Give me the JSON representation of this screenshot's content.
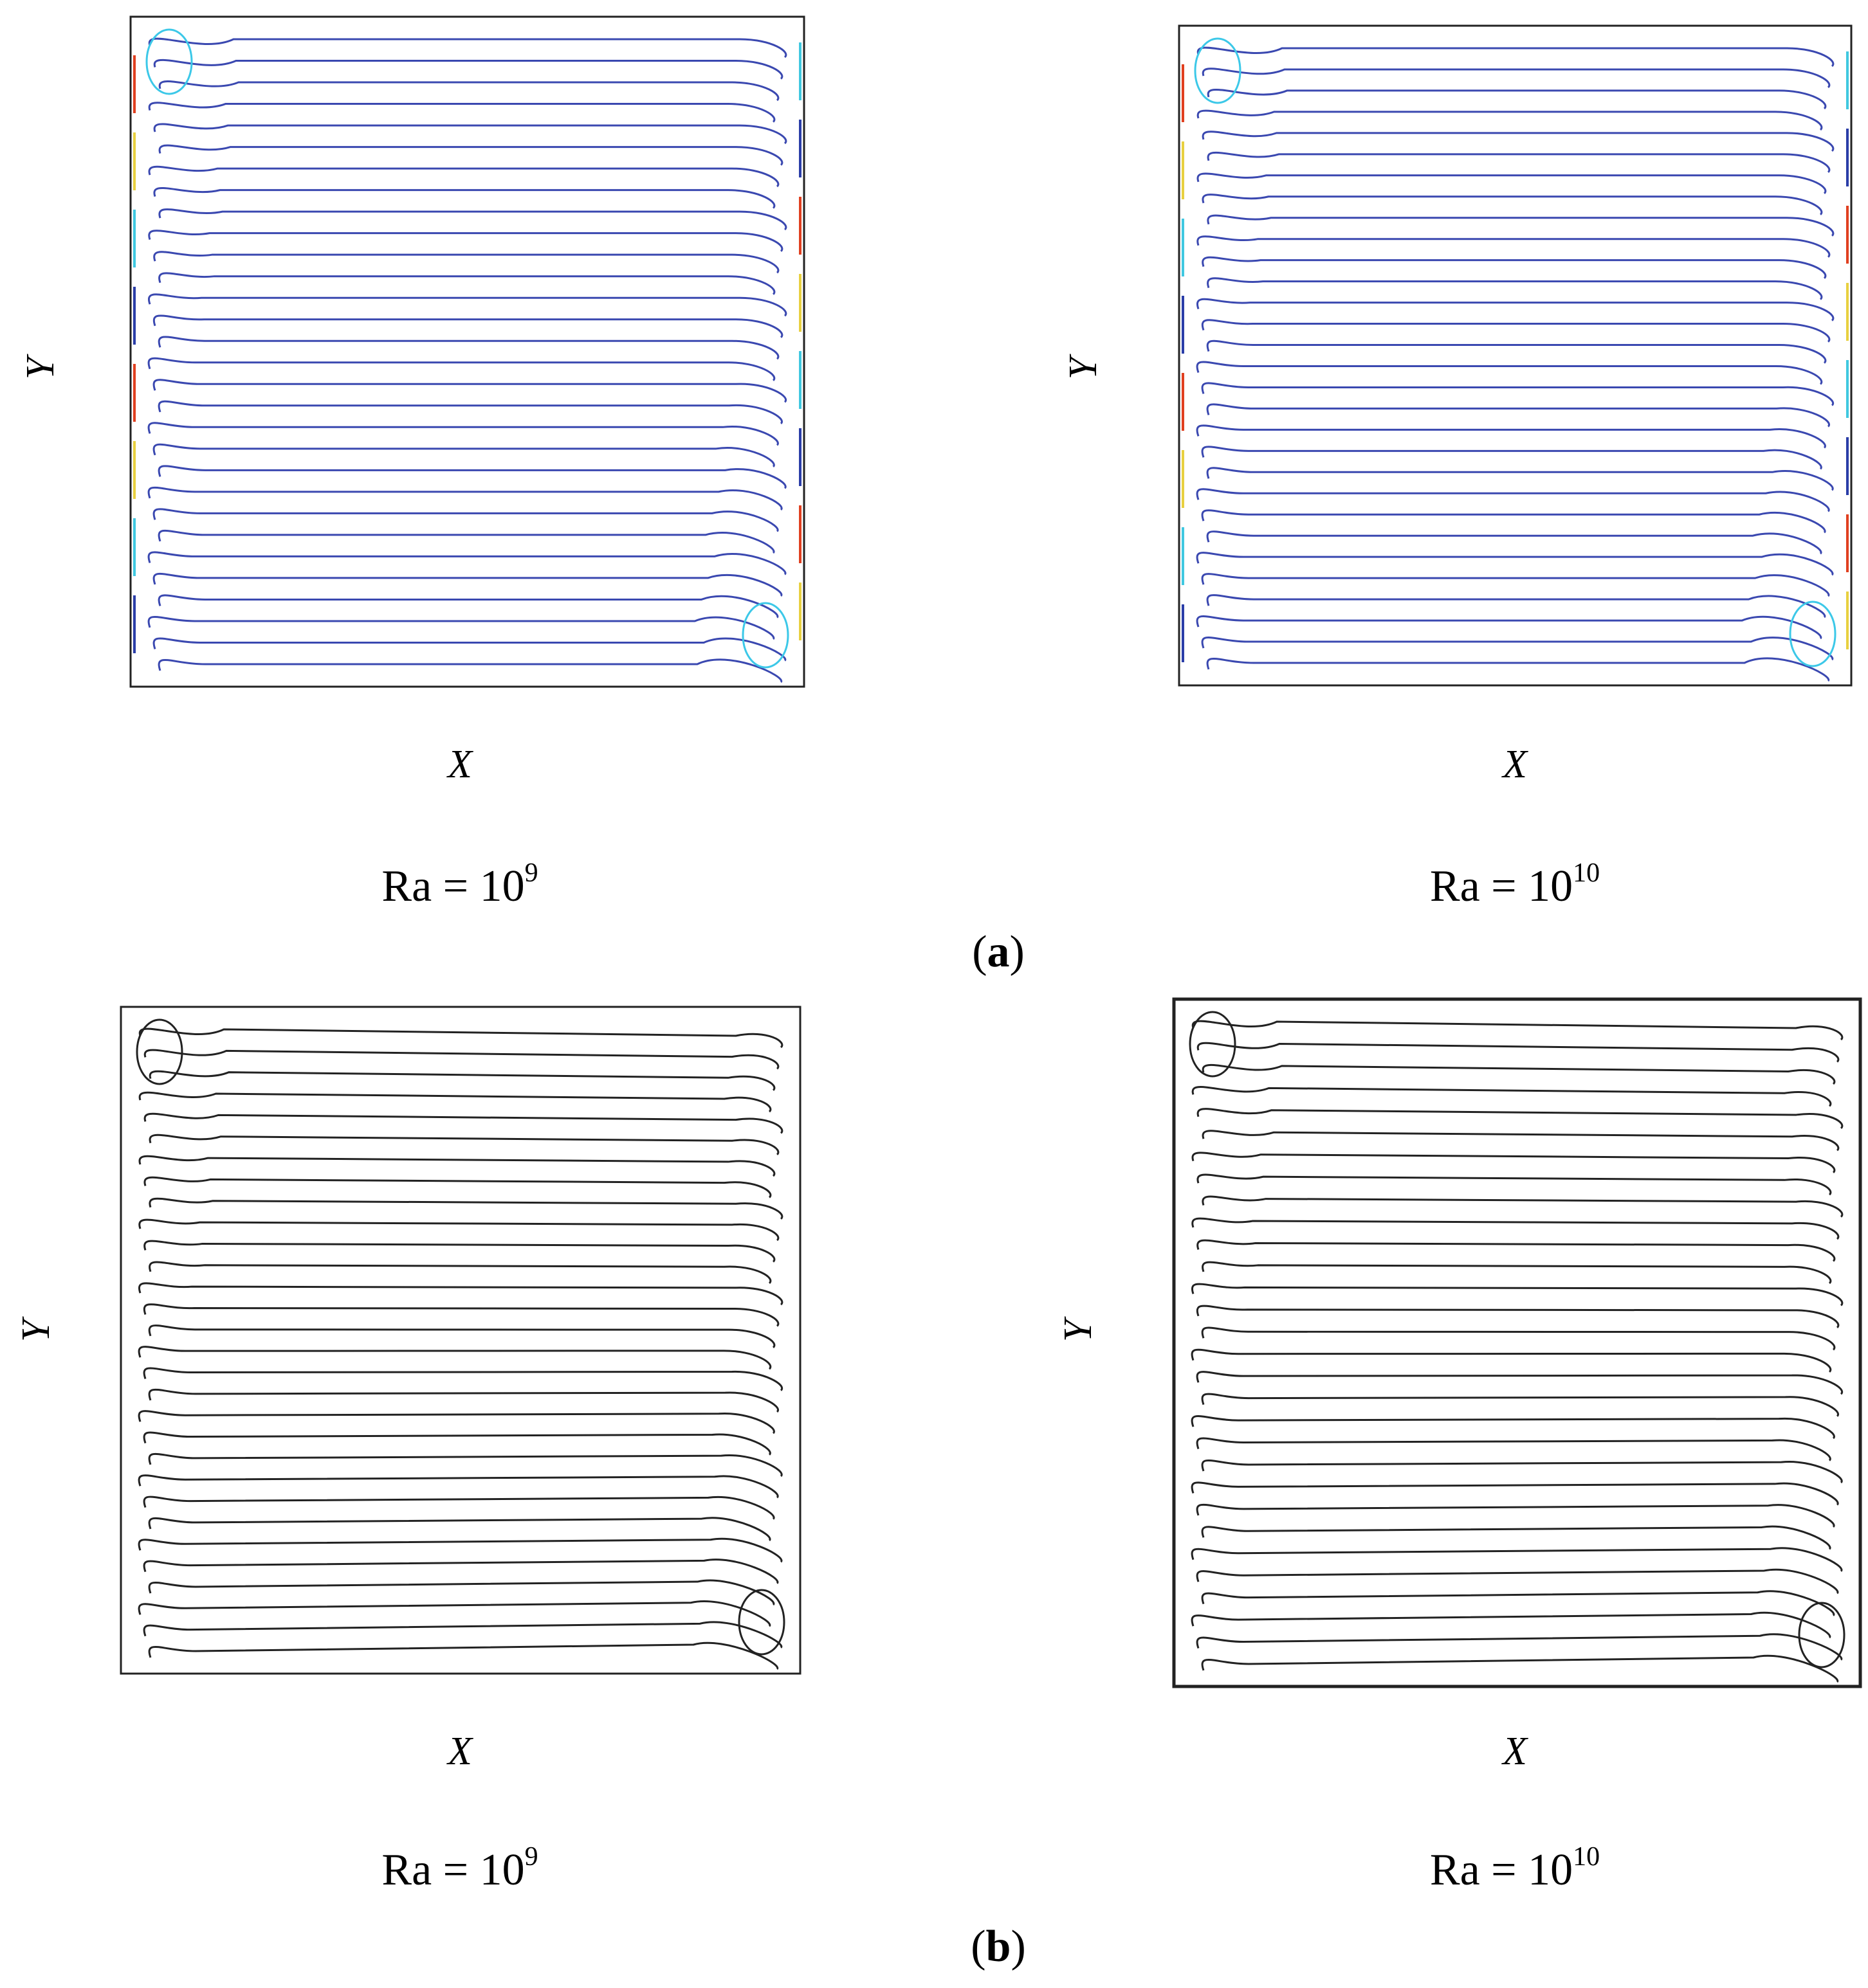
{
  "figures": [
    {
      "part": {
        "open": "(",
        "letter": "a",
        "close": ")"
      },
      "panels": [
        {
          "y_label": "Y",
          "x_label": "X",
          "caption": {
            "text": "Ra = 10",
            "exponent": "9"
          }
        },
        {
          "y_label": "Y",
          "x_label": "X",
          "caption": {
            "text": "Ra = 10",
            "exponent": "10"
          }
        }
      ]
    },
    {
      "part": {
        "open": "(",
        "letter": "b",
        "close": ")"
      },
      "panels": [
        {
          "y_label": "Y",
          "x_label": "X",
          "caption": {
            "text": "Ra = 10",
            "exponent": "9"
          }
        },
        {
          "y_label": "Y",
          "x_label": "X",
          "caption": {
            "text": "Ra = 10",
            "exponent": "10"
          }
        }
      ]
    }
  ]
}
